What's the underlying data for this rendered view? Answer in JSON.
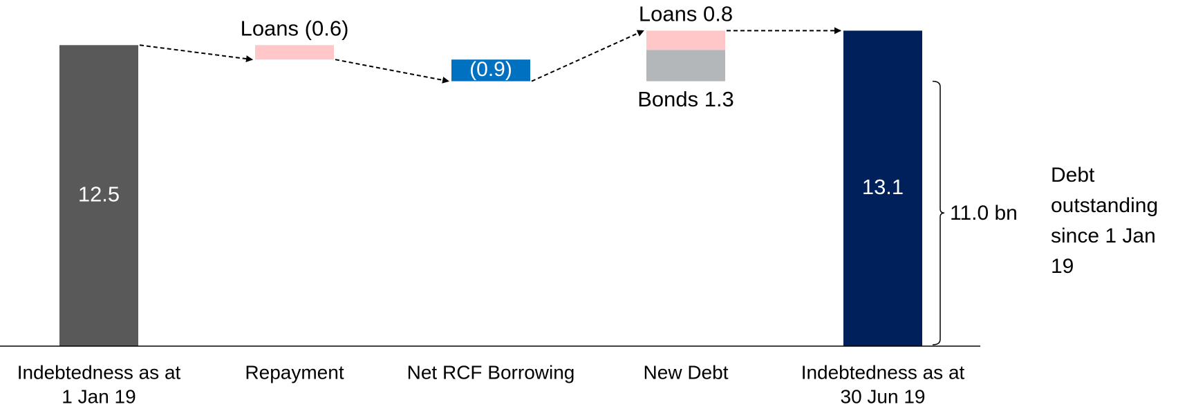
{
  "chart_data": {
    "type": "waterfall",
    "categories": [
      [
        "Indebtedness as at",
        "1 Jan 19"
      ],
      [
        "Repayment"
      ],
      [
        "Net RCF Borrowing"
      ],
      [
        "New Debt"
      ],
      [
        "Indebtedness as at",
        "30 Jun 19"
      ]
    ],
    "bars": [
      {
        "segments": [
          {
            "value": 12.5,
            "color": "#595959"
          }
        ]
      },
      {
        "segments": [
          {
            "value": -0.6,
            "color": "#ffc7c7",
            "value_label": "Loans (0.6)"
          }
        ]
      },
      {
        "segments": [
          {
            "value": -0.9,
            "color": "#0070c0",
            "value_label": "(0.9)"
          }
        ]
      },
      {
        "segments": [
          {
            "value": 1.3,
            "color": "#b4b7b9",
            "value_label": "Bonds 1.3"
          },
          {
            "value": 0.8,
            "color": "#ffc7c7",
            "value_label": "Loans 0.8"
          }
        ]
      },
      {
        "segments": [
          {
            "value": 13.1,
            "color": "#00205b"
          }
        ]
      }
    ],
    "ylim": [
      0,
      14
    ],
    "brace": {
      "value": 11.0,
      "label": "11.0 bn"
    },
    "note": [
      "Debt",
      "outstanding",
      "since 1 Jan",
      "19"
    ]
  }
}
